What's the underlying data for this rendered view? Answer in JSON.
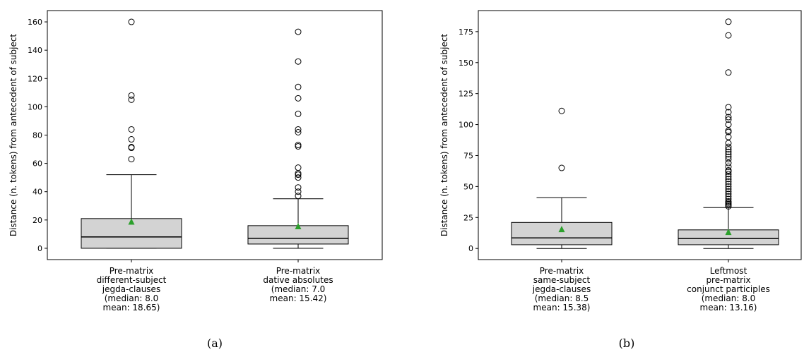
{
  "chart_data": [
    {
      "type": "box",
      "panel_label": "(a)",
      "ylabel": "Distance (n. tokens) from antecedent of subject",
      "ylim": [
        -8,
        168
      ],
      "yticks": [
        0,
        20,
        40,
        60,
        80,
        100,
        120,
        140,
        160
      ],
      "grid": false,
      "boxes": [
        {
          "label_lines": [
            "Pre-matrix",
            "different-subject",
            "jegda-clauses",
            "(median: 8.0",
            "mean: 18.65)"
          ],
          "whisker_low": 0,
          "q1": 0,
          "median": 8,
          "q3": 21,
          "whisker_high": 52,
          "mean": 18.65,
          "outliers": [
            63,
            71,
            71.5,
            77,
            84,
            105,
            108,
            160
          ]
        },
        {
          "label_lines": [
            "Pre-matrix",
            "dative absolutes",
            "(median: 7.0",
            "mean: 15.42)"
          ],
          "whisker_low": 0,
          "q1": 3,
          "median": 7,
          "q3": 16,
          "whisker_high": 35,
          "mean": 15.42,
          "outliers": [
            37,
            40,
            43,
            50,
            52,
            53,
            57,
            72,
            73,
            82,
            84,
            95,
            106,
            114,
            132,
            153
          ]
        }
      ]
    },
    {
      "type": "box",
      "panel_label": "(b)",
      "ylabel": "Distance (n. tokens) from antecedent of subject",
      "ylim": [
        -9,
        192
      ],
      "yticks": [
        0,
        25,
        50,
        75,
        100,
        125,
        150,
        175
      ],
      "grid": false,
      "boxes": [
        {
          "label_lines": [
            "Pre-matrix",
            "same-subject",
            "jegda-clauses",
            "(median: 8.5",
            "mean: 15.38)"
          ],
          "whisker_low": 0,
          "q1": 3,
          "median": 8.5,
          "q3": 21,
          "whisker_high": 41,
          "mean": 15.38,
          "outliers": [
            65,
            111
          ]
        },
        {
          "label_lines": [
            "Leftmost",
            "pre-matrix",
            "conjunct participles",
            "(median: 8.0",
            "mean: 13.16)"
          ],
          "whisker_low": 0,
          "q1": 3,
          "median": 8,
          "q3": 15,
          "whisker_high": 33,
          "mean": 13.16,
          "outliers": [
            34,
            35,
            36,
            37,
            38,
            40,
            42,
            44,
            46,
            48,
            50,
            52,
            54,
            56,
            58,
            60,
            62,
            63,
            66,
            69,
            72,
            74,
            76,
            78,
            80,
            82,
            85,
            90,
            94,
            95,
            100,
            104,
            106,
            110,
            114,
            142,
            172,
            183
          ]
        }
      ]
    }
  ],
  "colors": {
    "box_fill": "#d3d3d3",
    "mean_marker": "#2ca02c",
    "line": "#000000"
  }
}
